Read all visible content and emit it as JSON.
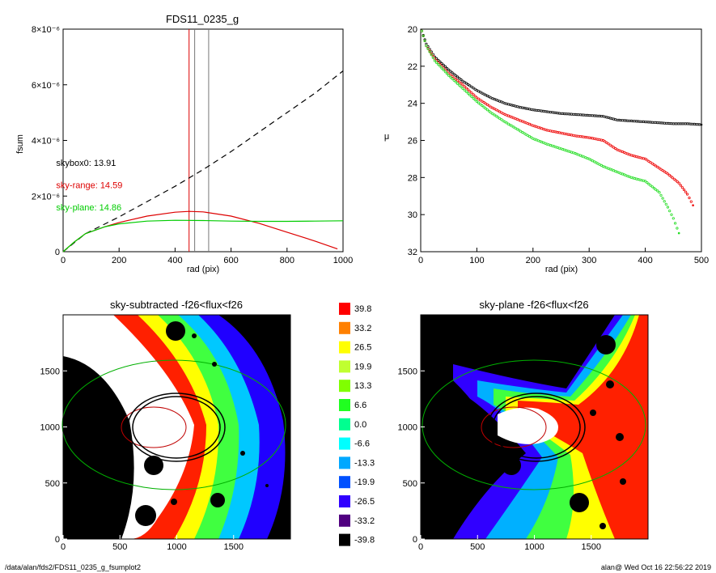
{
  "footer": {
    "path": "/data/alan/fds2/FDS11_0235_g_fsumplot2",
    "stamp": "alan@  Wed Oct 16 22:56:22 2019"
  },
  "colorbar": {
    "labels": [
      "39.8",
      "33.2",
      "26.5",
      "19.9",
      "13.3",
      "6.6",
      "0.0",
      "-6.6",
      "-13.3",
      "-19.9",
      "-26.5",
      "-33.2",
      "-39.8"
    ],
    "colors": [
      "#ff0000",
      "#ff8000",
      "#ffff00",
      "#c0ff30",
      "#80ff00",
      "#20ff20",
      "#00ff90",
      "#00ffff",
      "#00a8ff",
      "#0050ff",
      "#3000ff",
      "#500080",
      "#000000"
    ]
  },
  "chart_data": [
    {
      "type": "line",
      "title": "FDS11_0235_g",
      "xlabel": "rad (pix)",
      "ylabel": "fsum",
      "xlim": [
        0,
        1000
      ],
      "ylim": [
        0,
        8e-06
      ],
      "xticks": [
        "0",
        "200",
        "400",
        "600",
        "800",
        "1000"
      ],
      "yticks": [
        {
          "value": 0,
          "label": "0"
        },
        {
          "value": 2e-06,
          "label": "2×10⁻⁶"
        },
        {
          "value": 4e-06,
          "label": "4×10⁻⁶"
        },
        {
          "value": 6e-06,
          "label": "6×10⁻⁶"
        },
        {
          "value": 8e-06,
          "label": "8×10⁻⁶"
        }
      ],
      "series": [
        {
          "color": "#000000",
          "dash": true,
          "x": [
            0,
            80,
            150,
            200,
            300,
            400,
            500,
            600,
            700,
            800,
            900,
            1000
          ],
          "y": [
            0,
            6.5e-07,
            1e-06,
            1.25e-06,
            1.8e-06,
            2.35e-06,
            2.95e-06,
            3.6e-06,
            4.3e-06,
            5e-06,
            5.7e-06,
            6.5e-06
          ]
        },
        {
          "color": "#dd0000",
          "x": [
            0,
            40,
            80,
            150,
            200,
            300,
            400,
            450,
            500,
            600,
            700,
            800,
            900,
            980
          ],
          "y": [
            0,
            3.5e-07,
            6.5e-07,
            9e-07,
            1.05e-06,
            1.28e-06,
            1.42e-06,
            1.45e-06,
            1.43e-06,
            1.28e-06,
            1.02e-06,
            7e-07,
            3.8e-07,
            1e-07
          ]
        },
        {
          "color": "#00cc00",
          "x": [
            0,
            40,
            80,
            150,
            200,
            300,
            400,
            500,
            600,
            700,
            800,
            900,
            1000
          ],
          "y": [
            0,
            3.5e-07,
            6.5e-07,
            9e-07,
            1e-06,
            1.1e-06,
            1.13e-06,
            1.12e-06,
            1.1e-06,
            1.09e-06,
            1.09e-06,
            1.1e-06,
            1.11e-06
          ]
        }
      ],
      "vlines": [
        {
          "x": 450,
          "color": "#dd0000"
        },
        {
          "x": 470,
          "color": "#777777"
        },
        {
          "x": 520,
          "color": "#777777"
        }
      ],
      "annotations": [
        {
          "text": "skybox0: 13.91",
          "color": "#000000",
          "x": 270,
          "y": 3.2e-06
        },
        {
          "text": "sky-range: 14.59",
          "color": "#dd0000",
          "x": 270,
          "y": 2.4e-06
        },
        {
          "text": "sky-plane: 14.86",
          "color": "#00cc00",
          "x": 270,
          "y": 1.6e-06
        }
      ]
    },
    {
      "type": "scatter",
      "xlabel": "rad (pix)",
      "ylabel": "μ",
      "xlim": [
        0,
        500
      ],
      "ylim": [
        32,
        20
      ],
      "xticks": [
        "0",
        "100",
        "200",
        "300",
        "400",
        "500"
      ],
      "yticks": [
        "20",
        "22",
        "24",
        "26",
        "28",
        "30",
        "32"
      ],
      "series": [
        {
          "color": "#000000",
          "x": [
            2,
            10,
            25,
            50,
            75,
            100,
            125,
            150,
            175,
            200,
            225,
            250,
            275,
            300,
            325,
            350,
            375,
            400,
            425,
            450,
            475,
            500
          ],
          "y": [
            20.1,
            20.8,
            21.5,
            22.2,
            22.8,
            23.3,
            23.7,
            24.0,
            24.2,
            24.35,
            24.45,
            24.55,
            24.6,
            24.65,
            24.7,
            24.9,
            24.95,
            25.0,
            25.05,
            25.1,
            25.1,
            25.15
          ]
        },
        {
          "color": "#ee0000",
          "x": [
            2,
            10,
            25,
            50,
            75,
            100,
            125,
            150,
            175,
            200,
            225,
            250,
            275,
            300,
            325,
            350,
            375,
            400,
            425,
            440,
            460,
            475,
            485
          ],
          "y": [
            20.1,
            20.9,
            21.6,
            22.4,
            23.0,
            23.7,
            24.2,
            24.6,
            24.9,
            25.2,
            25.45,
            25.6,
            25.75,
            25.85,
            26.0,
            26.5,
            26.8,
            27.0,
            27.5,
            27.8,
            28.3,
            28.9,
            29.5
          ]
        },
        {
          "color": "#22dd22",
          "x": [
            2,
            10,
            25,
            50,
            75,
            100,
            125,
            150,
            175,
            200,
            225,
            250,
            275,
            300,
            325,
            350,
            375,
            400,
            425,
            440,
            450,
            460
          ],
          "y": [
            20.1,
            20.9,
            21.7,
            22.5,
            23.2,
            23.9,
            24.5,
            25.0,
            25.45,
            25.9,
            26.2,
            26.45,
            26.7,
            27.0,
            27.4,
            27.7,
            28.0,
            28.2,
            28.8,
            29.6,
            30.2,
            31.0
          ]
        }
      ]
    },
    {
      "type": "heatmap",
      "title": "sky-subtracted -f26<flux<f26",
      "xlim": [
        0,
        2000
      ],
      "ylim": [
        0,
        2000
      ],
      "xticks": [
        "0",
        "500",
        "1000",
        "1500"
      ],
      "yticks": [
        "0",
        "500",
        "1000",
        "1500"
      ]
    },
    {
      "type": "heatmap",
      "title": "sky-plane -f26<flux<f26",
      "xlim": [
        0,
        2000
      ],
      "ylim": [
        0,
        2000
      ],
      "xticks": [
        "0",
        "500",
        "1000",
        "1500"
      ],
      "yticks": [
        "0",
        "500",
        "1000",
        "1500"
      ]
    }
  ]
}
